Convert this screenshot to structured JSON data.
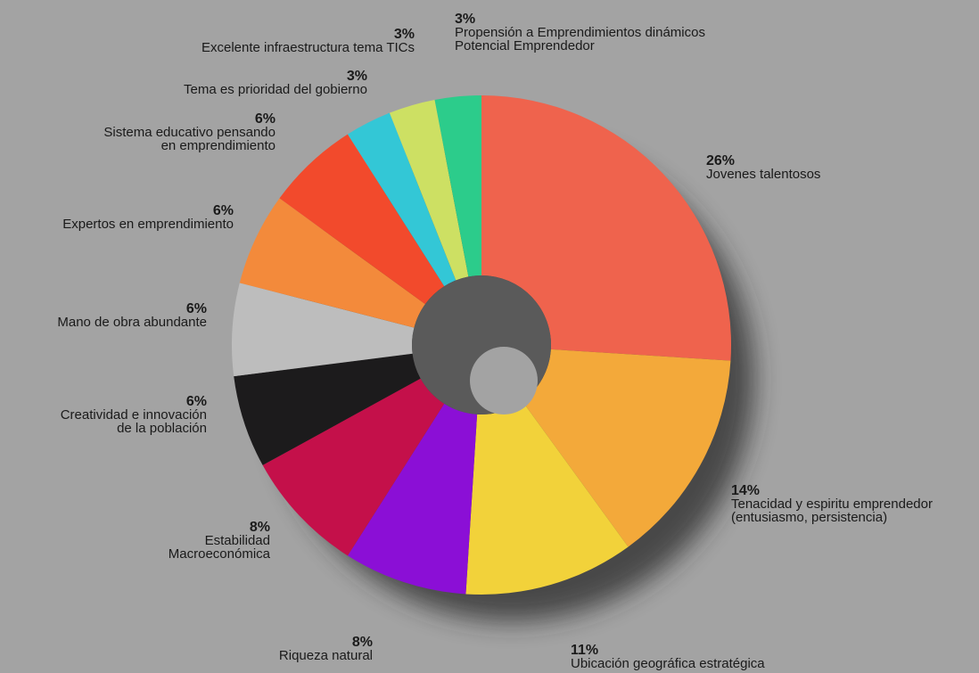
{
  "chart_data": {
    "type": "pie",
    "donut": true,
    "unit": "%",
    "slices": [
      {
        "label_lines": [
          "Jovenes talentosos"
        ],
        "pct_label": "26%",
        "value": 26,
        "color": "#ef634d"
      },
      {
        "label_lines": [
          "Tenacidad y espiritu emprendedor",
          "(entusiasmo, persistencia)"
        ],
        "pct_label": "14%",
        "value": 14,
        "color": "#f3a93a"
      },
      {
        "label_lines": [
          "Ubicación geográfica estratégica"
        ],
        "pct_label": "11%",
        "value": 11,
        "color": "#f2d23a"
      },
      {
        "label_lines": [
          "Riqueza natural"
        ],
        "pct_label": "8%",
        "value": 8,
        "color": "#8b0fd6"
      },
      {
        "label_lines": [
          "Estabilidad",
          "Macroeconómica"
        ],
        "pct_label": "8%",
        "value": 8,
        "color": "#c4104a"
      },
      {
        "label_lines": [
          "Creatividad e innovación",
          "de la población"
        ],
        "pct_label": "6%",
        "value": 6,
        "color": "#1c1b1c"
      },
      {
        "label_lines": [
          "Mano de obra abundante"
        ],
        "pct_label": "6%",
        "value": 6,
        "color": "#bdbdbd"
      },
      {
        "label_lines": [
          "Expertos en emprendimiento"
        ],
        "pct_label": "6%",
        "value": 6,
        "color": "#f38a3b"
      },
      {
        "label_lines": [
          "Sistema educativo pensando",
          "en emprendimiento"
        ],
        "pct_label": "6%",
        "value": 6,
        "color": "#f24a2c"
      },
      {
        "label_lines": [
          "Tema es prioridad del gobierno"
        ],
        "pct_label": "3%",
        "value": 3,
        "color": "#33c7d6"
      },
      {
        "label_lines": [
          "Excelente infraestructura tema TICs"
        ],
        "pct_label": "3%",
        "value": 3,
        "color": "#cde063"
      },
      {
        "label_lines": [
          "Propensión a Emprendimientos dinámicos",
          "Potencial Emprendedor"
        ],
        "pct_label": "3%",
        "value": 3,
        "color": "#2ccc8b"
      }
    ]
  }
}
